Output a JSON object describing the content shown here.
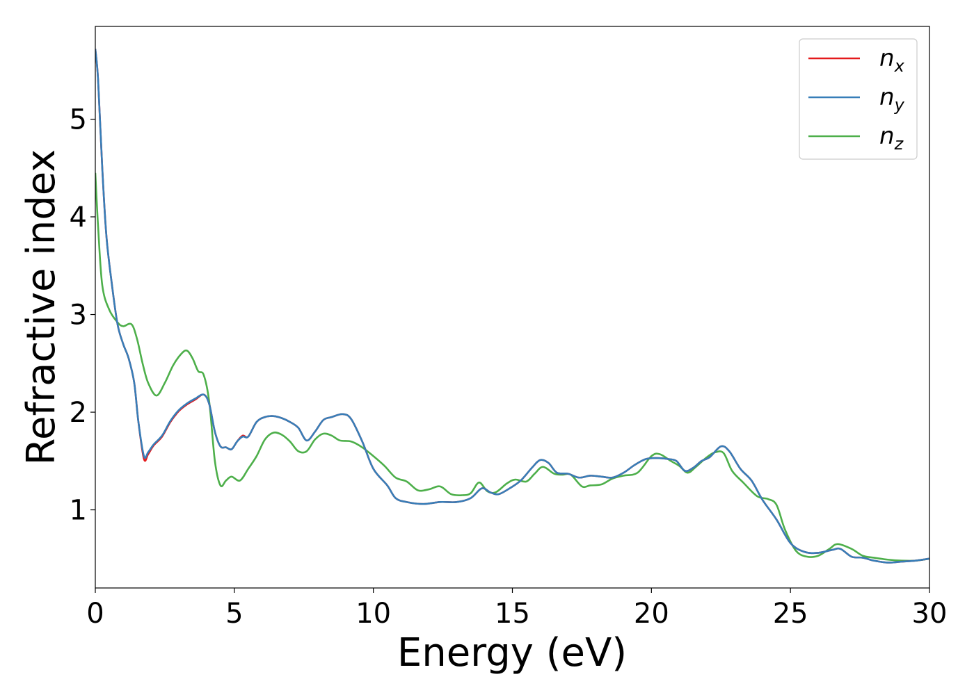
{
  "chart_data": {
    "type": "line",
    "title": "",
    "xlabel": "Energy (eV)",
    "ylabel": "Refractive index",
    "xlim": [
      0,
      30
    ],
    "ylim": [
      0.2,
      5.95
    ],
    "xticks": [
      0,
      5,
      10,
      15,
      20,
      25,
      30
    ],
    "yticks": [
      1,
      2,
      3,
      4,
      5
    ],
    "grid": false,
    "legend_position": "top-right",
    "series": [
      {
        "name": "n",
        "subscript": "x",
        "color": "#e41a1c",
        "points": [
          [
            0,
            5.72
          ],
          [
            0.1,
            5.4
          ],
          [
            0.25,
            4.5
          ],
          [
            0.4,
            3.8
          ],
          [
            0.6,
            3.3
          ],
          [
            0.8,
            2.9
          ],
          [
            1.0,
            2.7
          ],
          [
            1.2,
            2.55
          ],
          [
            1.4,
            2.3
          ],
          [
            1.55,
            1.9
          ],
          [
            1.75,
            1.52
          ],
          [
            1.9,
            1.57
          ],
          [
            2.1,
            1.66
          ],
          [
            2.4,
            1.75
          ],
          [
            2.7,
            1.9
          ],
          [
            3.0,
            2.01
          ],
          [
            3.3,
            2.08
          ],
          [
            3.6,
            2.13
          ],
          [
            3.9,
            2.18
          ],
          [
            4.1,
            2.08
          ],
          [
            4.3,
            1.8
          ],
          [
            4.5,
            1.65
          ],
          [
            4.7,
            1.64
          ],
          [
            4.9,
            1.62
          ],
          [
            5.1,
            1.7
          ],
          [
            5.3,
            1.76
          ],
          [
            5.5,
            1.75
          ],
          [
            5.8,
            1.9
          ],
          [
            6.1,
            1.95
          ],
          [
            6.4,
            1.96
          ],
          [
            6.7,
            1.94
          ],
          [
            7.0,
            1.9
          ],
          [
            7.3,
            1.84
          ],
          [
            7.6,
            1.71
          ],
          [
            7.9,
            1.8
          ],
          [
            8.2,
            1.92
          ],
          [
            8.5,
            1.95
          ],
          [
            8.9,
            1.98
          ],
          [
            9.2,
            1.93
          ],
          [
            9.6,
            1.7
          ],
          [
            10.0,
            1.42
          ],
          [
            10.5,
            1.25
          ],
          [
            10.8,
            1.12
          ],
          [
            11.2,
            1.08
          ],
          [
            11.8,
            1.06
          ],
          [
            12.4,
            1.08
          ],
          [
            13.0,
            1.08
          ],
          [
            13.5,
            1.12
          ],
          [
            13.9,
            1.22
          ],
          [
            14.2,
            1.18
          ],
          [
            14.5,
            1.16
          ],
          [
            14.9,
            1.22
          ],
          [
            15.3,
            1.3
          ],
          [
            15.7,
            1.43
          ],
          [
            16.0,
            1.51
          ],
          [
            16.3,
            1.48
          ],
          [
            16.6,
            1.38
          ],
          [
            17.0,
            1.37
          ],
          [
            17.4,
            1.33
          ],
          [
            17.8,
            1.35
          ],
          [
            18.2,
            1.34
          ],
          [
            18.6,
            1.33
          ],
          [
            19.0,
            1.38
          ],
          [
            19.4,
            1.46
          ],
          [
            19.8,
            1.52
          ],
          [
            20.2,
            1.53
          ],
          [
            20.6,
            1.52
          ],
          [
            20.9,
            1.5
          ],
          [
            21.2,
            1.4
          ],
          [
            21.5,
            1.43
          ],
          [
            21.8,
            1.5
          ],
          [
            22.1,
            1.54
          ],
          [
            22.5,
            1.65
          ],
          [
            22.8,
            1.6
          ],
          [
            23.2,
            1.42
          ],
          [
            23.6,
            1.3
          ],
          [
            24.0,
            1.1
          ],
          [
            24.5,
            0.9
          ],
          [
            25.0,
            0.66
          ],
          [
            25.5,
            0.57
          ],
          [
            26.0,
            0.56
          ],
          [
            26.5,
            0.59
          ],
          [
            26.8,
            0.6
          ],
          [
            27.2,
            0.52
          ],
          [
            27.6,
            0.51
          ],
          [
            28.0,
            0.48
          ],
          [
            28.5,
            0.46
          ],
          [
            29.0,
            0.47
          ],
          [
            29.5,
            0.48
          ],
          [
            30.0,
            0.5
          ]
        ]
      },
      {
        "name": "n",
        "subscript": "y",
        "color": "#377eb8",
        "points": [
          [
            0,
            5.72
          ],
          [
            0.1,
            5.4
          ],
          [
            0.25,
            4.5
          ],
          [
            0.4,
            3.8
          ],
          [
            0.6,
            3.3
          ],
          [
            0.8,
            2.9
          ],
          [
            1.0,
            2.7
          ],
          [
            1.2,
            2.55
          ],
          [
            1.4,
            2.3
          ],
          [
            1.55,
            1.9
          ],
          [
            1.75,
            1.55
          ],
          [
            1.9,
            1.59
          ],
          [
            2.1,
            1.67
          ],
          [
            2.4,
            1.76
          ],
          [
            2.7,
            1.91
          ],
          [
            3.0,
            2.02
          ],
          [
            3.3,
            2.09
          ],
          [
            3.6,
            2.14
          ],
          [
            3.9,
            2.18
          ],
          [
            4.1,
            2.08
          ],
          [
            4.3,
            1.8
          ],
          [
            4.5,
            1.65
          ],
          [
            4.7,
            1.64
          ],
          [
            4.9,
            1.62
          ],
          [
            5.1,
            1.7
          ],
          [
            5.3,
            1.75
          ],
          [
            5.5,
            1.75
          ],
          [
            5.8,
            1.9
          ],
          [
            6.1,
            1.95
          ],
          [
            6.4,
            1.96
          ],
          [
            6.7,
            1.94
          ],
          [
            7.0,
            1.9
          ],
          [
            7.3,
            1.84
          ],
          [
            7.6,
            1.71
          ],
          [
            7.9,
            1.8
          ],
          [
            8.2,
            1.92
          ],
          [
            8.5,
            1.95
          ],
          [
            8.9,
            1.98
          ],
          [
            9.2,
            1.93
          ],
          [
            9.6,
            1.7
          ],
          [
            10.0,
            1.42
          ],
          [
            10.5,
            1.25
          ],
          [
            10.8,
            1.12
          ],
          [
            11.2,
            1.08
          ],
          [
            11.8,
            1.06
          ],
          [
            12.4,
            1.08
          ],
          [
            13.0,
            1.08
          ],
          [
            13.5,
            1.12
          ],
          [
            13.9,
            1.22
          ],
          [
            14.2,
            1.18
          ],
          [
            14.5,
            1.16
          ],
          [
            14.9,
            1.22
          ],
          [
            15.3,
            1.3
          ],
          [
            15.7,
            1.43
          ],
          [
            16.0,
            1.51
          ],
          [
            16.3,
            1.48
          ],
          [
            16.6,
            1.38
          ],
          [
            17.0,
            1.37
          ],
          [
            17.4,
            1.33
          ],
          [
            17.8,
            1.35
          ],
          [
            18.2,
            1.34
          ],
          [
            18.6,
            1.33
          ],
          [
            19.0,
            1.38
          ],
          [
            19.4,
            1.46
          ],
          [
            19.8,
            1.52
          ],
          [
            20.2,
            1.53
          ],
          [
            20.6,
            1.52
          ],
          [
            20.9,
            1.5
          ],
          [
            21.2,
            1.4
          ],
          [
            21.5,
            1.43
          ],
          [
            21.8,
            1.5
          ],
          [
            22.1,
            1.54
          ],
          [
            22.5,
            1.65
          ],
          [
            22.8,
            1.6
          ],
          [
            23.2,
            1.42
          ],
          [
            23.6,
            1.3
          ],
          [
            24.0,
            1.1
          ],
          [
            24.5,
            0.9
          ],
          [
            25.0,
            0.66
          ],
          [
            25.5,
            0.57
          ],
          [
            26.0,
            0.56
          ],
          [
            26.5,
            0.59
          ],
          [
            26.8,
            0.6
          ],
          [
            27.2,
            0.52
          ],
          [
            27.6,
            0.51
          ],
          [
            28.0,
            0.48
          ],
          [
            28.5,
            0.46
          ],
          [
            29.0,
            0.47
          ],
          [
            29.5,
            0.48
          ],
          [
            30.0,
            0.5
          ]
        ]
      },
      {
        "name": "n",
        "subscript": "z",
        "color": "#4daf4a",
        "points": [
          [
            0,
            4.45
          ],
          [
            0.1,
            3.9
          ],
          [
            0.25,
            3.3
          ],
          [
            0.5,
            3.05
          ],
          [
            0.8,
            2.92
          ],
          [
            1.0,
            2.88
          ],
          [
            1.3,
            2.9
          ],
          [
            1.5,
            2.75
          ],
          [
            1.7,
            2.5
          ],
          [
            1.9,
            2.3
          ],
          [
            2.2,
            2.17
          ],
          [
            2.5,
            2.3
          ],
          [
            2.8,
            2.48
          ],
          [
            3.1,
            2.6
          ],
          [
            3.3,
            2.63
          ],
          [
            3.5,
            2.55
          ],
          [
            3.7,
            2.42
          ],
          [
            3.9,
            2.38
          ],
          [
            4.1,
            2.1
          ],
          [
            4.3,
            1.5
          ],
          [
            4.5,
            1.25
          ],
          [
            4.7,
            1.3
          ],
          [
            4.9,
            1.34
          ],
          [
            5.2,
            1.3
          ],
          [
            5.5,
            1.42
          ],
          [
            5.8,
            1.55
          ],
          [
            6.1,
            1.72
          ],
          [
            6.4,
            1.79
          ],
          [
            6.7,
            1.77
          ],
          [
            7.0,
            1.7
          ],
          [
            7.3,
            1.6
          ],
          [
            7.6,
            1.6
          ],
          [
            7.9,
            1.72
          ],
          [
            8.2,
            1.78
          ],
          [
            8.5,
            1.76
          ],
          [
            8.8,
            1.71
          ],
          [
            9.2,
            1.7
          ],
          [
            9.6,
            1.64
          ],
          [
            10.0,
            1.55
          ],
          [
            10.4,
            1.45
          ],
          [
            10.8,
            1.33
          ],
          [
            11.2,
            1.29
          ],
          [
            11.6,
            1.2
          ],
          [
            12.0,
            1.21
          ],
          [
            12.4,
            1.24
          ],
          [
            12.8,
            1.16
          ],
          [
            13.2,
            1.15
          ],
          [
            13.5,
            1.17
          ],
          [
            13.8,
            1.28
          ],
          [
            14.1,
            1.19
          ],
          [
            14.4,
            1.18
          ],
          [
            14.8,
            1.27
          ],
          [
            15.1,
            1.31
          ],
          [
            15.5,
            1.29
          ],
          [
            15.8,
            1.37
          ],
          [
            16.1,
            1.44
          ],
          [
            16.5,
            1.37
          ],
          [
            16.8,
            1.36
          ],
          [
            17.1,
            1.36
          ],
          [
            17.5,
            1.24
          ],
          [
            17.8,
            1.25
          ],
          [
            18.2,
            1.26
          ],
          [
            18.6,
            1.32
          ],
          [
            19.0,
            1.35
          ],
          [
            19.5,
            1.38
          ],
          [
            20.0,
            1.55
          ],
          [
            20.3,
            1.57
          ],
          [
            20.7,
            1.5
          ],
          [
            21.0,
            1.45
          ],
          [
            21.3,
            1.38
          ],
          [
            21.6,
            1.44
          ],
          [
            22.0,
            1.54
          ],
          [
            22.3,
            1.59
          ],
          [
            22.6,
            1.58
          ],
          [
            22.9,
            1.4
          ],
          [
            23.3,
            1.28
          ],
          [
            23.8,
            1.14
          ],
          [
            24.2,
            1.11
          ],
          [
            24.5,
            1.05
          ],
          [
            24.8,
            0.8
          ],
          [
            25.2,
            0.58
          ],
          [
            25.6,
            0.52
          ],
          [
            26.0,
            0.53
          ],
          [
            26.4,
            0.6
          ],
          [
            26.7,
            0.65
          ],
          [
            27.2,
            0.6
          ],
          [
            27.6,
            0.53
          ],
          [
            28.0,
            0.51
          ],
          [
            28.5,
            0.49
          ],
          [
            29.0,
            0.48
          ],
          [
            29.5,
            0.48
          ],
          [
            30.0,
            0.5
          ]
        ]
      }
    ]
  }
}
